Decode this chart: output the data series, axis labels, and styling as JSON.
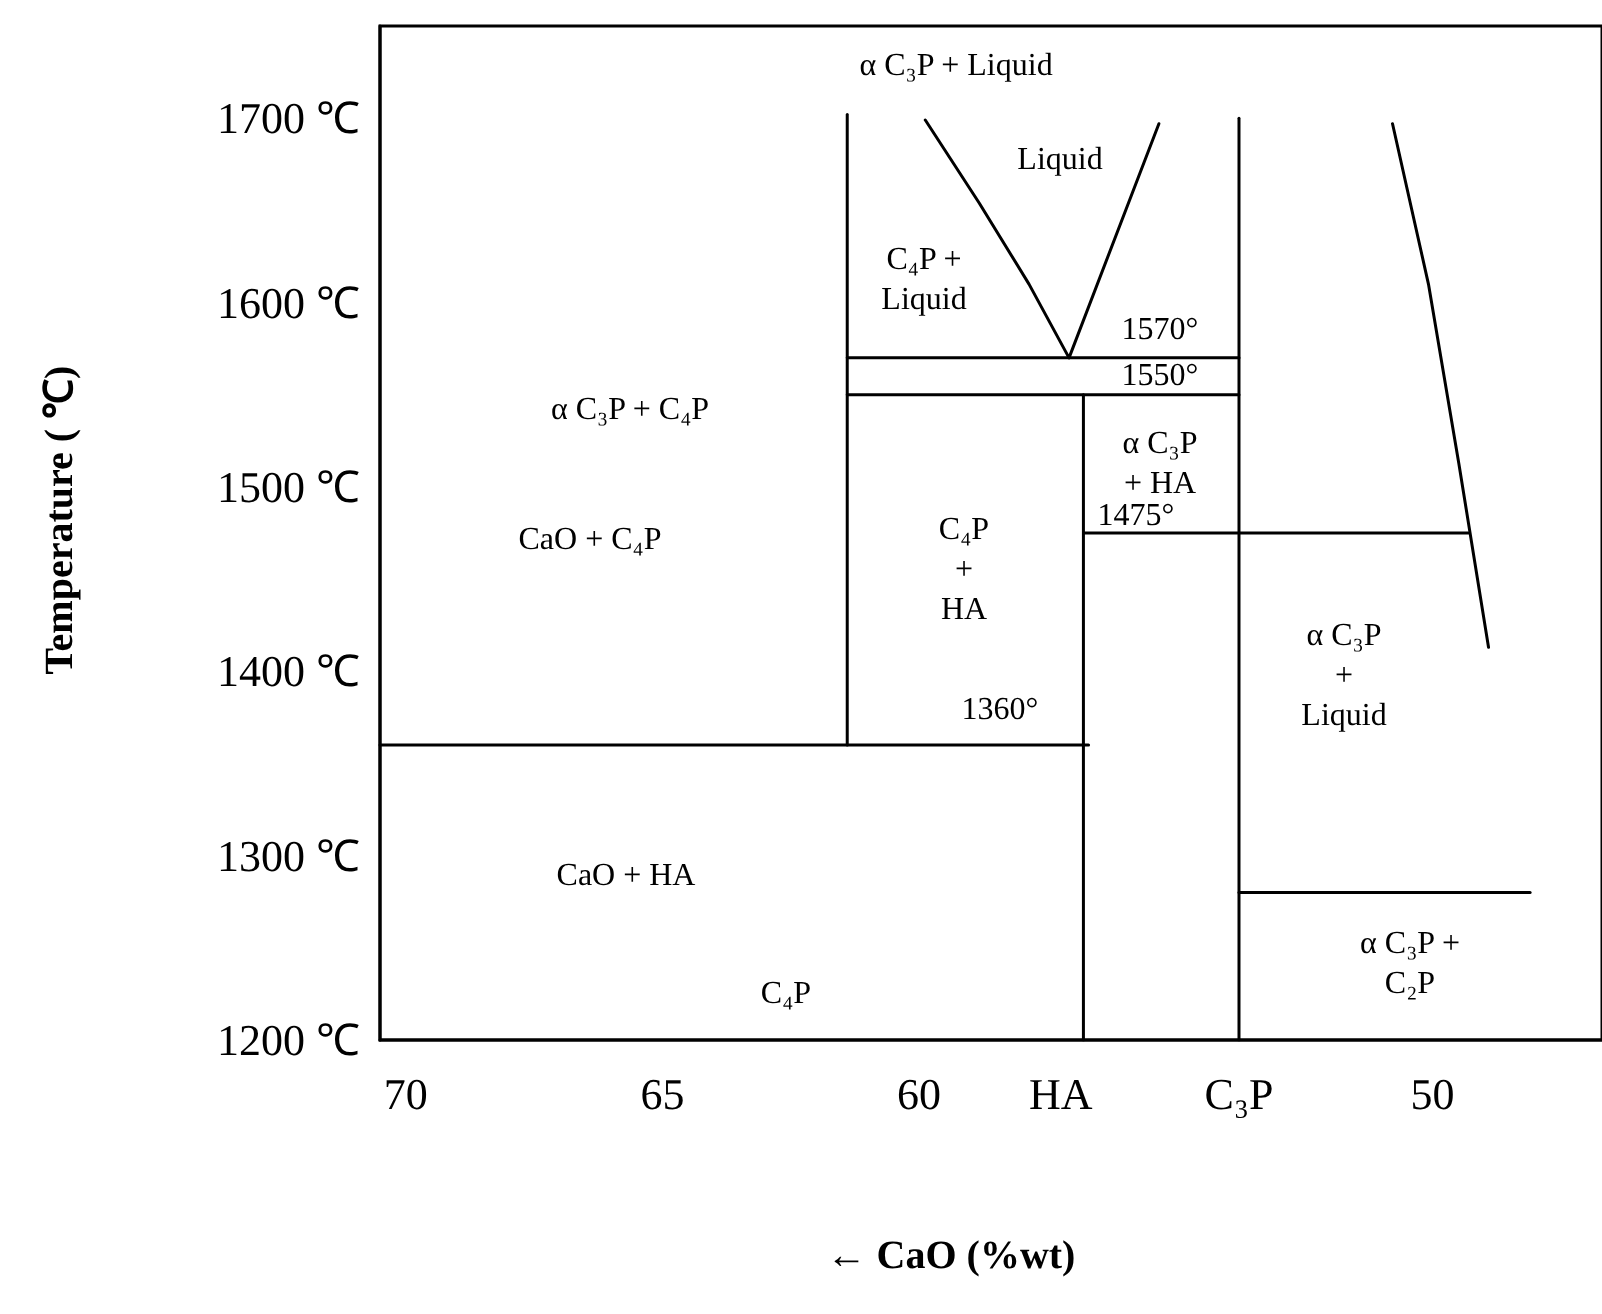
{
  "chart_data": {
    "type": "line",
    "xlabel": "← CaO (%wt)",
    "ylabel": "Temperature ( ℃)",
    "xlim": [
      70.5,
      46.7
    ],
    "xticks": [
      70,
      65,
      60,
      {
        "value": 57.24,
        "label": "HA"
      },
      {
        "value": 53.77,
        "label": "C₃P"
      },
      50
    ],
    "ylim": [
      1200,
      1750
    ],
    "yticks": [
      {
        "value": 1200,
        "label": "1200 ℃"
      },
      {
        "value": 1300,
        "label": "1300 ℃"
      },
      {
        "value": 1400,
        "label": "1400 ℃"
      },
      {
        "value": 1500,
        "label": "1500 ℃"
      },
      {
        "value": 1600,
        "label": "1600 ℃"
      },
      {
        "value": 1700,
        "label": "1700 ℃"
      }
    ],
    "grid": false,
    "marker": "none",
    "line_style": "solid",
    "series": [
      {
        "color": "#000000",
        "x": [
          61.4,
          61.4
        ],
        "values": [
          1360,
          1702
        ]
      },
      {
        "color": "#000000",
        "x": [
          70.5,
          56.7
        ],
        "values": [
          1360,
          1360
        ]
      },
      {
        "color": "#000000",
        "x": [
          56.8,
          56.8
        ],
        "values": [
          1200,
          1550
        ]
      },
      {
        "color": "#000000",
        "x": [
          61.4,
          53.77
        ],
        "values": [
          1570,
          1570
        ]
      },
      {
        "color": "#000000",
        "x": [
          61.4,
          53.77
        ],
        "values": [
          1550,
          1550
        ]
      },
      {
        "color": "#000000",
        "x": [
          53.77,
          53.77
        ],
        "values": [
          1200,
          1700
        ]
      },
      {
        "color": "#000000",
        "x": [
          56.8,
          49.3
        ],
        "values": [
          1475,
          1475
        ]
      },
      {
        "color": "#000000",
        "x": [
          53.77,
          48.1
        ],
        "values": [
          1280,
          1280
        ]
      },
      {
        "color": "#000000",
        "x": [
          59.88,
          58.83,
          57.86,
          57.08,
          55.33
        ],
        "values": [
          1699,
          1654,
          1610,
          1570,
          1697
        ]
      },
      {
        "color": "#000000",
        "x": [
          50.78,
          50.08,
          49.49,
          48.91
        ],
        "values": [
          1697,
          1610,
          1513,
          1413
        ]
      }
    ],
    "annotations": [
      "α C₃P + Liquid",
      "Liquid",
      "C₄P +\nLiquid",
      "1570°",
      "1550°",
      "α C₃P + C₄P",
      "α C₃P\n+ HA",
      "1475°",
      "CaO + C₄P",
      "C₄P\n+\nHA",
      "1360°",
      "α C₃P\n+\nLiquid",
      "CaO + HA",
      "C₄P",
      "α C₃P +\nC₂P"
    ]
  }
}
